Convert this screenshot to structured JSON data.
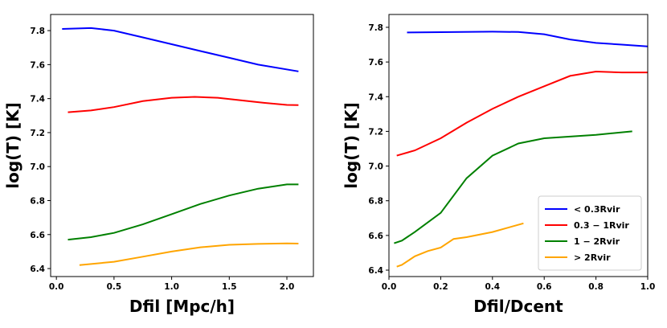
{
  "chart_data": [
    {
      "type": "line",
      "ylabel": "log(T) [K]",
      "xlabel": "Dfil [Mpc/h]",
      "xlim": [
        -0.05,
        2.23
      ],
      "ylim": [
        6.353,
        7.895
      ],
      "xticks": [
        {
          "value": 0,
          "label": "0.0"
        },
        0.5,
        {
          "value": 1,
          "label": "1.0"
        },
        1.5,
        {
          "value": 2,
          "label": "2.0"
        }
      ],
      "yticks": [
        6.4,
        6.6,
        6.8,
        {
          "value": 7,
          "label": "7.0"
        },
        7.2,
        7.4,
        7.6,
        7.8
      ],
      "series": [
        {
          "color": "#0000ff",
          "x": [
            0.05,
            0.3,
            0.5,
            0.75,
            1.0,
            1.25,
            1.5,
            1.75,
            2.1
          ],
          "values": [
            7.81,
            7.815,
            7.8,
            7.76,
            7.72,
            7.68,
            7.64,
            7.6,
            7.56
          ]
        },
        {
          "color": "#ff0000",
          "x": [
            0.1,
            0.3,
            0.5,
            0.75,
            1.0,
            1.2,
            1.4,
            1.6,
            1.8,
            2.0,
            2.1
          ],
          "values": [
            7.32,
            7.33,
            7.35,
            7.385,
            7.405,
            7.41,
            7.405,
            7.39,
            7.375,
            7.363,
            7.362
          ]
        },
        {
          "color": "#008000",
          "x": [
            0.1,
            0.3,
            0.5,
            0.75,
            1.0,
            1.25,
            1.5,
            1.75,
            2.0,
            2.1
          ],
          "values": [
            6.57,
            6.585,
            6.61,
            6.66,
            6.72,
            6.78,
            6.83,
            6.87,
            6.895,
            6.895
          ]
        },
        {
          "color": "#ffa500",
          "x": [
            0.2,
            0.5,
            0.75,
            1.0,
            1.25,
            1.5,
            1.75,
            2.0,
            2.1
          ],
          "values": [
            6.42,
            6.44,
            6.47,
            6.5,
            6.525,
            6.54,
            6.545,
            6.548,
            6.547
          ]
        }
      ]
    },
    {
      "type": "line",
      "ylabel": "log(T) [K]",
      "xlabel": "Dfil/Dcent",
      "legend": "lower right",
      "xlim": [
        0,
        1
      ],
      "ylim": [
        6.363,
        7.874
      ],
      "xticks": [
        {
          "value": 0,
          "label": "0.0"
        },
        0.2,
        0.4,
        0.6,
        0.8,
        {
          "value": 1,
          "label": "1.0"
        }
      ],
      "yticks": [
        6.4,
        6.6,
        6.8,
        {
          "value": 7,
          "label": "7.0"
        },
        7.2,
        7.4,
        7.6,
        7.8
      ],
      "series": [
        {
          "name": "< 0.3Rvir",
          "color": "#0000ff",
          "x": [
            0.07,
            0.2,
            0.4,
            0.5,
            0.6,
            0.7,
            0.8,
            0.9,
            1.0
          ],
          "values": [
            7.77,
            7.772,
            7.775,
            7.773,
            7.76,
            7.73,
            7.71,
            7.7,
            7.69
          ]
        },
        {
          "name": "0.3 − 1Rvir",
          "color": "#ff0000",
          "x": [
            0.03,
            0.1,
            0.2,
            0.3,
            0.4,
            0.5,
            0.6,
            0.7,
            0.8,
            0.9,
            1.0
          ],
          "values": [
            7.06,
            7.09,
            7.16,
            7.25,
            7.33,
            7.4,
            7.46,
            7.52,
            7.545,
            7.54,
            7.54
          ]
        },
        {
          "name": "1 − 2Rvir",
          "color": "#008000",
          "x": [
            0.02,
            0.05,
            0.1,
            0.2,
            0.3,
            0.4,
            0.5,
            0.6,
            0.8,
            0.94
          ],
          "values": [
            6.555,
            6.57,
            6.62,
            6.73,
            6.93,
            7.06,
            7.13,
            7.16,
            7.18,
            7.2
          ]
        },
        {
          "name": "> 2Rvir",
          "color": "#ffa500",
          "x": [
            0.03,
            0.05,
            0.1,
            0.15,
            0.2,
            0.25,
            0.3,
            0.4,
            0.52
          ],
          "values": [
            6.42,
            6.43,
            6.48,
            6.51,
            6.53,
            6.58,
            6.59,
            6.62,
            6.67
          ]
        }
      ]
    }
  ]
}
